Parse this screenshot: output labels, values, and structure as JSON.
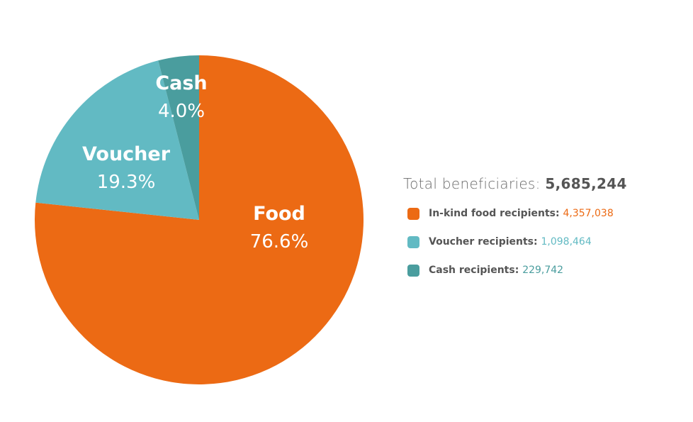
{
  "colors": {
    "food": "#EC6A14",
    "voucher": "#62BAC3",
    "cash": "#4A9D9E"
  },
  "summary": {
    "total_label": "Total beneficiaries: ",
    "total_value": "5,685,244"
  },
  "legend": [
    {
      "label": "In-kind food recipients: ",
      "value": "4,357,038",
      "color": "#EC6A14"
    },
    {
      "label": "Voucher recipients: ",
      "value": "1,098,464",
      "color": "#62BAC3"
    },
    {
      "label": "Cash recipients: ",
      "value": "229,742",
      "color": "#4A9D9E"
    }
  ],
  "chart_data": {
    "type": "pie",
    "slices": [
      {
        "name": "Food",
        "percent": 76.6,
        "percent_label": "76.6%",
        "color": "#EC6A14"
      },
      {
        "name": "Voucher",
        "percent": 19.3,
        "percent_label": "19.3%",
        "color": "#62BAC3"
      },
      {
        "name": "Cash",
        "percent": 4.0,
        "percent_label": "4.0%",
        "color": "#4A9D9E"
      }
    ],
    "start_angle_deg": 0,
    "direction": "clockwise",
    "legend_position": "right"
  }
}
